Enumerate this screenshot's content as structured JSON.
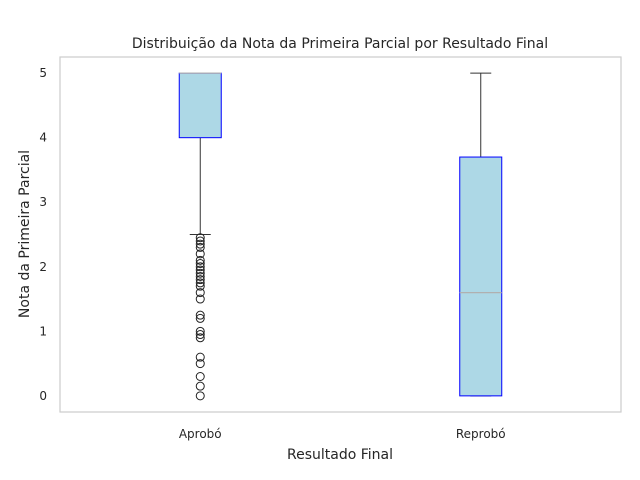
{
  "chart_data": {
    "type": "box",
    "title": "Distribuição da Nota da Primeira Parcial por Resultado Final",
    "xlabel": "Resultado Final",
    "ylabel": "Nota da Primeira Parcial",
    "categories": [
      "Aprobó",
      "Reprobó"
    ],
    "ylim": [
      -0.25,
      5.25
    ],
    "yticks": [
      "0",
      "1",
      "2",
      "3",
      "4",
      "5"
    ],
    "grid": false,
    "box_fill": "#add8e6",
    "box_edge": "#0000ff",
    "median_color": "#b0b0b0",
    "whisker_color": "#333333",
    "boxes": [
      {
        "name": "Aprobó",
        "whisker_low": 2.5,
        "q1": 4.0,
        "median": 5.0,
        "q3": 5.0,
        "whisker_high": 5.0,
        "outliers": [
          2.45,
          2.4,
          2.35,
          2.3,
          2.2,
          2.1,
          2.05,
          2.0,
          1.95,
          1.9,
          1.85,
          1.8,
          1.75,
          1.7,
          1.6,
          1.5,
          1.25,
          1.2,
          1.0,
          0.95,
          0.9,
          0.6,
          0.5,
          0.3,
          0.15,
          0.0
        ]
      },
      {
        "name": "Reprobó",
        "whisker_low": 0.0,
        "q1": 0.0,
        "median": 1.6,
        "q3": 3.7,
        "whisker_high": 5.0,
        "outliers": []
      }
    ]
  }
}
